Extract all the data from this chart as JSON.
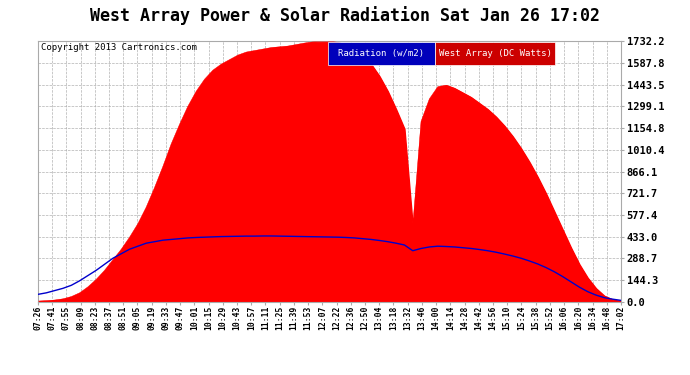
{
  "title": "West Array Power & Solar Radiation Sat Jan 26 17:02",
  "copyright": "Copyright 2013 Cartronics.com",
  "legend_radiation": "Radiation (w/m2)",
  "legend_west": "West Array (DC Watts)",
  "bg_color": "#ffffff",
  "plot_bg_color": "#ffffff",
  "grid_color": "#aaaaaa",
  "radiation_color": "#0000cc",
  "west_color": "#ff0000",
  "ylim": [
    0.0,
    1732.2
  ],
  "yticks": [
    0.0,
    144.3,
    288.7,
    433.0,
    577.4,
    721.7,
    866.1,
    1010.4,
    1154.8,
    1299.1,
    1443.5,
    1587.8,
    1732.2
  ],
  "xtick_labels": [
    "07:26",
    "07:41",
    "07:55",
    "08:09",
    "08:23",
    "08:37",
    "08:51",
    "09:05",
    "09:19",
    "09:33",
    "09:47",
    "10:01",
    "10:15",
    "10:29",
    "10:43",
    "10:57",
    "11:11",
    "11:25",
    "11:39",
    "11:53",
    "12:07",
    "12:22",
    "12:36",
    "12:50",
    "13:04",
    "13:18",
    "13:32",
    "13:46",
    "14:00",
    "14:14",
    "14:28",
    "14:42",
    "14:56",
    "15:10",
    "15:24",
    "15:38",
    "15:52",
    "16:06",
    "16:20",
    "16:34",
    "16:48",
    "17:02"
  ],
  "west_array_data": [
    5,
    8,
    12,
    20,
    35,
    60,
    100,
    150,
    210,
    280,
    350,
    430,
    520,
    630,
    760,
    900,
    1050,
    1180,
    1300,
    1400,
    1480,
    1540,
    1580,
    1610,
    1640,
    1660,
    1670,
    1680,
    1690,
    1695,
    1700,
    1710,
    1720,
    1728,
    1730,
    1732,
    1725,
    1710,
    1690,
    1640,
    1580,
    1500,
    1400,
    1280,
    1150,
    500,
    1200,
    1350,
    1430,
    1440,
    1420,
    1390,
    1360,
    1320,
    1280,
    1230,
    1170,
    1100,
    1020,
    930,
    830,
    720,
    600,
    480,
    360,
    250,
    160,
    90,
    40,
    15,
    5
  ],
  "radiation_data": [
    50,
    60,
    75,
    90,
    110,
    140,
    175,
    210,
    250,
    290,
    320,
    350,
    370,
    390,
    400,
    410,
    415,
    420,
    425,
    428,
    430,
    432,
    434,
    435,
    436,
    437,
    437,
    438,
    438,
    437,
    436,
    435,
    434,
    433,
    432,
    431,
    430,
    428,
    425,
    420,
    415,
    408,
    400,
    390,
    378,
    340,
    355,
    365,
    370,
    368,
    365,
    360,
    355,
    348,
    340,
    330,
    318,
    305,
    290,
    272,
    252,
    228,
    200,
    168,
    133,
    98,
    68,
    45,
    28,
    18,
    10
  ],
  "title_fontsize": 12,
  "copyright_fontsize": 6.5,
  "legend_fontsize": 6.5,
  "ytick_fontsize": 7.5,
  "xtick_fontsize": 5.8
}
